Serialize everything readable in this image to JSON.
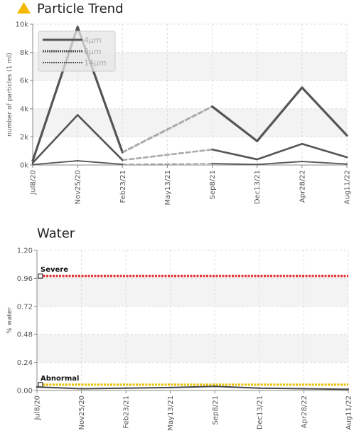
{
  "chart_data": [
    {
      "type": "line",
      "title": "Particle Trend",
      "ylabel": "number of particles (1 ml)",
      "ylim": [
        0,
        10000
      ],
      "yticks": [
        "0k",
        "2k",
        "4k",
        "6k",
        "8k",
        "10k"
      ],
      "x": [
        "Jul8/20",
        "Nov25/20",
        "Feb23/21",
        "May13/21",
        "Sep8/21",
        "Dec13/21",
        "Apr28/22",
        "Aug11/22"
      ],
      "legend_placement": "top-left",
      "series": [
        {
          "name": "4μm",
          "color": "#555555",
          "points": [
            [
              0,
              300
            ],
            [
              1,
              9800
            ],
            [
              2,
              900
            ],
            [
              4,
              4150
            ],
            [
              5,
              1700
            ],
            [
              6,
              5500
            ],
            [
              7,
              2100
            ]
          ],
          "dashed_segments": [
            2
          ]
        },
        {
          "name": "6μm",
          "color": "#555555",
          "points": [
            [
              0,
              150
            ],
            [
              1,
              3550
            ],
            [
              2,
              350
            ],
            [
              4,
              1100
            ],
            [
              5,
              400
            ],
            [
              6,
              1500
            ],
            [
              7,
              550
            ]
          ],
          "dashed_segments": [
            2
          ]
        },
        {
          "name": "14μm",
          "color": "#555555",
          "points": [
            [
              0,
              30
            ],
            [
              1,
              300
            ],
            [
              2,
              50
            ],
            [
              4,
              100
            ],
            [
              5,
              40
            ],
            [
              6,
              250
            ],
            [
              7,
              70
            ]
          ],
          "dashed_segments": [
            2
          ]
        }
      ]
    },
    {
      "type": "line",
      "title": "Water",
      "ylabel": "% water",
      "ylim": [
        0,
        1.2
      ],
      "yticks": [
        "0.00",
        "0.24",
        "0.48",
        "0.72",
        "0.96",
        "1.20"
      ],
      "x": [
        "Jul8/20",
        "Nov25/20",
        "Feb23/21",
        "May13/21",
        "Sep8/21",
        "Dec13/21",
        "Apr28/22",
        "Aug11/22"
      ],
      "thresholds": [
        {
          "label": "Severe",
          "value": 0.98,
          "color": "#dd2222"
        },
        {
          "label": "Abnormal",
          "value": 0.05,
          "color": "#e8c000"
        }
      ],
      "series": [
        {
          "color": "#444444",
          "points": [
            [
              0,
              0.03
            ],
            [
              1,
              0.015
            ],
            [
              2,
              0.02
            ],
            [
              3,
              0.025
            ],
            [
              4,
              0.035
            ],
            [
              5,
              0.02
            ],
            [
              6,
              0.015
            ],
            [
              7,
              0.01
            ]
          ]
        }
      ]
    }
  ],
  "icons": {
    "warning": "warning-triangle-icon",
    "warning_color": "#f5b800"
  }
}
